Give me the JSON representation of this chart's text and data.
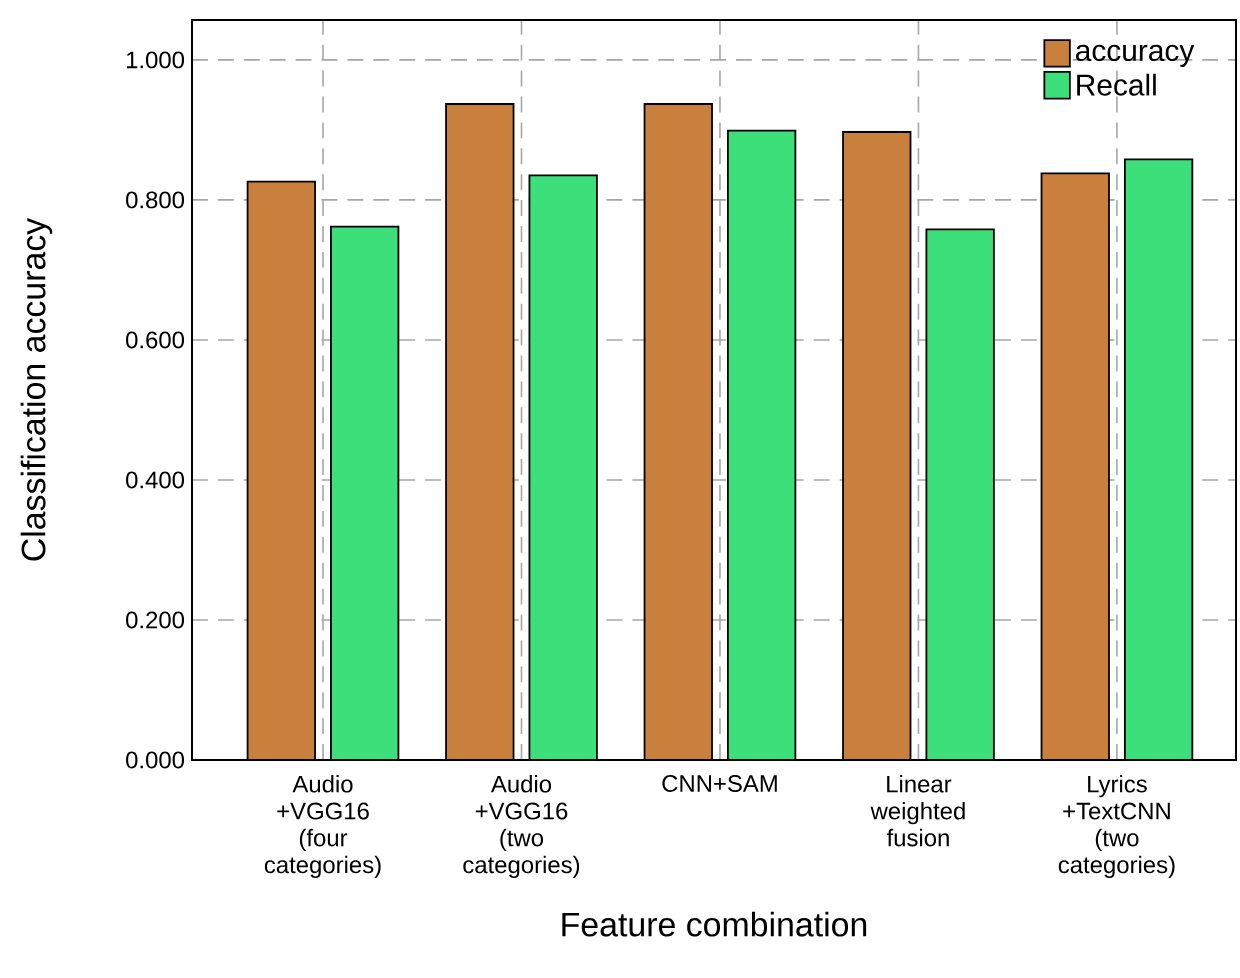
{
  "chart_data": {
    "type": "bar",
    "xlabel": "Feature combination",
    "ylabel": "Classification accuracy",
    "categories": [
      "Audio +VGG16 (four categories)",
      "Audio +VGG16 (two categories)",
      "CNN+SAM",
      "Linear weighted fusion",
      "Lyrics +TextCNN (two categories)"
    ],
    "series": [
      {
        "name": "accuracy",
        "color": "#c8803c",
        "values": [
          0.826,
          0.937,
          0.937,
          0.897,
          0.838
        ]
      },
      {
        "name": "Recall",
        "color": "#3ddf7a",
        "values": [
          0.762,
          0.835,
          0.899,
          0.758,
          0.858
        ]
      }
    ],
    "ylim": [
      0,
      1.057
    ],
    "yticks": [
      {
        "value": 0,
        "label": "0.000"
      },
      {
        "value": 0.2,
        "label": "0.200"
      },
      {
        "value": 0.4,
        "label": "0.400"
      },
      {
        "value": 0.6,
        "label": "0.600"
      },
      {
        "value": 0.8,
        "label": "0.800"
      },
      {
        "value": 1.0,
        "label": "1.000"
      }
    ],
    "grid": true,
    "legend": "top right"
  }
}
